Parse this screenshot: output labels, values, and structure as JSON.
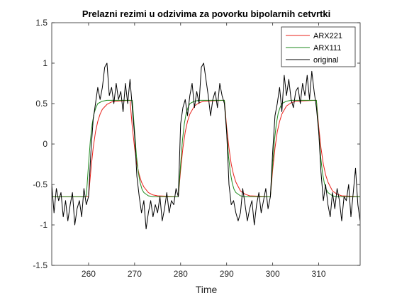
{
  "chart_data": {
    "type": "line",
    "title": "Prelazni rezimi u odzivima za povorku bipolarnih cetvrtki",
    "xlabel": "Time",
    "ylabel": "",
    "xlim": [
      252,
      319
    ],
    "ylim": [
      -1.5,
      1.5
    ],
    "xticks": [
      260,
      270,
      280,
      290,
      300,
      310
    ],
    "yticks": [
      -1.5,
      -1,
      -0.5,
      0,
      0.5,
      1,
      1.5
    ],
    "xtick_labels": [
      "260",
      "270",
      "280",
      "290",
      "300",
      "310"
    ],
    "ytick_labels": [
      "-1.5",
      "-1",
      "-0.5",
      "0",
      "0.5",
      "1",
      "1.5"
    ],
    "grid": false,
    "legend_position": "top-right",
    "legend_entries": [
      "ARX221",
      "ARX111",
      "original"
    ],
    "series": [
      {
        "name": "ARX221",
        "color": "#e8201a",
        "x": [
          252,
          260,
          260.5,
          261,
          261.5,
          262,
          262.5,
          263,
          264,
          265,
          266,
          269,
          269.5,
          270,
          270.5,
          271,
          271.5,
          272,
          273,
          274,
          275,
          279.5,
          280,
          280.5,
          281,
          281.5,
          282,
          283,
          284,
          285,
          289.5,
          290,
          290.5,
          291,
          291.5,
          292,
          293,
          294,
          295,
          299.5,
          300,
          300.5,
          301,
          301.5,
          302,
          303,
          304,
          305,
          309.5,
          310,
          310.5,
          311,
          311.5,
          312,
          313,
          314,
          315,
          319
        ],
        "values": [
          -0.65,
          -0.65,
          -0.32,
          -0.05,
          0.15,
          0.28,
          0.37,
          0.43,
          0.49,
          0.52,
          0.53,
          0.54,
          0.21,
          -0.05,
          -0.25,
          -0.38,
          -0.47,
          -0.53,
          -0.6,
          -0.63,
          -0.64,
          -0.65,
          -0.32,
          -0.05,
          0.15,
          0.28,
          0.37,
          0.47,
          0.51,
          0.53,
          0.54,
          0.21,
          -0.05,
          -0.25,
          -0.38,
          -0.47,
          -0.58,
          -0.62,
          -0.64,
          -0.65,
          -0.32,
          -0.05,
          0.15,
          0.28,
          0.37,
          0.47,
          0.51,
          0.53,
          0.54,
          0.21,
          -0.05,
          -0.25,
          -0.38,
          -0.47,
          -0.58,
          -0.62,
          -0.64,
          -0.65
        ]
      },
      {
        "name": "ARX111",
        "color": "#1e8a1e",
        "x": [
          252,
          259.5,
          260,
          260.4,
          260.8,
          261.2,
          261.6,
          262,
          263,
          264,
          269.5,
          270,
          270.4,
          270.8,
          271.2,
          271.6,
          272,
          273,
          274,
          279.5,
          280,
          280.4,
          280.8,
          281.2,
          281.6,
          282,
          283,
          284,
          289.5,
          290,
          290.4,
          290.8,
          291.2,
          291.6,
          292,
          293,
          294,
          299.5,
          300,
          300.4,
          300.8,
          301.2,
          301.6,
          302,
          303,
          304,
          309.5,
          310,
          310.4,
          310.8,
          311.2,
          311.6,
          312,
          313,
          314,
          319
        ],
        "values": [
          -0.65,
          -0.65,
          -0.25,
          0.05,
          0.25,
          0.38,
          0.45,
          0.5,
          0.53,
          0.54,
          0.54,
          0.15,
          -0.15,
          -0.35,
          -0.48,
          -0.56,
          -0.6,
          -0.64,
          -0.65,
          -0.65,
          -0.25,
          0.05,
          0.25,
          0.38,
          0.45,
          0.5,
          0.53,
          0.54,
          0.54,
          0.15,
          -0.15,
          -0.35,
          -0.48,
          -0.56,
          -0.6,
          -0.64,
          -0.65,
          -0.65,
          -0.25,
          0.05,
          0.25,
          0.38,
          0.45,
          0.5,
          0.53,
          0.54,
          0.54,
          0.15,
          -0.15,
          -0.35,
          -0.48,
          -0.56,
          -0.6,
          -0.64,
          -0.65,
          -0.65
        ]
      },
      {
        "name": "original",
        "color": "#000000",
        "x": [
          252,
          252.5,
          253,
          253.5,
          254,
          254.5,
          255,
          255.5,
          256,
          256.5,
          257,
          257.5,
          258,
          258.5,
          259,
          259.5,
          260,
          260.5,
          261,
          261.5,
          262,
          262.5,
          263,
          263.5,
          264,
          264.5,
          265,
          265.5,
          266,
          266.5,
          267,
          267.5,
          268,
          268.5,
          269,
          269.5,
          270,
          270.5,
          271,
          271.5,
          272,
          272.5,
          273,
          273.5,
          274,
          274.5,
          275,
          275.5,
          276,
          276.5,
          277,
          277.5,
          278,
          278.5,
          279,
          279.5,
          280,
          280.5,
          281,
          281.5,
          282,
          282.5,
          283,
          283.5,
          284,
          284.5,
          285,
          285.5,
          286,
          286.5,
          287,
          287.5,
          288,
          288.5,
          289,
          289.5,
          290,
          290.5,
          291,
          291.5,
          292,
          292.5,
          293,
          293.5,
          294,
          294.5,
          295,
          295.5,
          296,
          296.5,
          297,
          297.5,
          298,
          298.5,
          299,
          299.5,
          300,
          300.5,
          301,
          301.5,
          302,
          302.5,
          303,
          303.5,
          304,
          304.5,
          305,
          305.5,
          306,
          306.5,
          307,
          307.5,
          308,
          308.5,
          309,
          309.5,
          310,
          310.5,
          311,
          311.5,
          312,
          312.5,
          313,
          313.5,
          314,
          314.5,
          315,
          315.5,
          316,
          316.5,
          317,
          317.5,
          318,
          318.5,
          319
        ],
        "values": [
          -0.5,
          -0.85,
          -0.55,
          -0.7,
          -0.6,
          -0.9,
          -0.7,
          -0.95,
          -0.75,
          -0.6,
          -1.0,
          -0.8,
          -0.7,
          -0.9,
          -0.55,
          -0.75,
          -0.65,
          -0.1,
          0.3,
          0.5,
          0.7,
          0.55,
          0.7,
          0.95,
          1.0,
          0.6,
          0.7,
          0.5,
          0.75,
          0.55,
          0.65,
          0.4,
          0.75,
          0.5,
          0.8,
          0.45,
          0.1,
          -0.4,
          -0.65,
          -0.85,
          -0.7,
          -1.05,
          -0.85,
          -0.7,
          -0.9,
          -0.75,
          -0.85,
          -0.65,
          -0.95,
          -0.8,
          -0.6,
          -0.85,
          -0.7,
          -0.75,
          -0.55,
          -0.65,
          0.25,
          0.45,
          0.55,
          0.35,
          0.6,
          0.75,
          0.45,
          0.65,
          0.5,
          0.95,
          1.0,
          0.8,
          0.6,
          0.35,
          0.55,
          0.65,
          0.45,
          0.75,
          0.6,
          0.5,
          0.15,
          -0.5,
          -0.75,
          -0.7,
          -0.85,
          -0.95,
          -0.85,
          -0.55,
          -0.75,
          -0.95,
          -0.8,
          -0.7,
          -1.0,
          -0.75,
          -0.6,
          -0.85,
          -0.7,
          -0.55,
          -0.8,
          -0.65,
          -0.1,
          0.35,
          0.5,
          0.7,
          0.4,
          0.85,
          0.6,
          0.8,
          0.55,
          0.45,
          0.65,
          0.7,
          0.5,
          0.75,
          0.6,
          0.85,
          0.55,
          0.9,
          0.65,
          0.45,
          0.15,
          -0.35,
          -0.7,
          -0.5,
          -0.75,
          -0.9,
          -0.6,
          -0.8,
          -0.55,
          -0.7,
          -0.95,
          -0.65,
          -0.7,
          -0.5,
          -0.9,
          -0.6,
          -0.3,
          -0.75,
          -0.95
        ]
      }
    ]
  }
}
